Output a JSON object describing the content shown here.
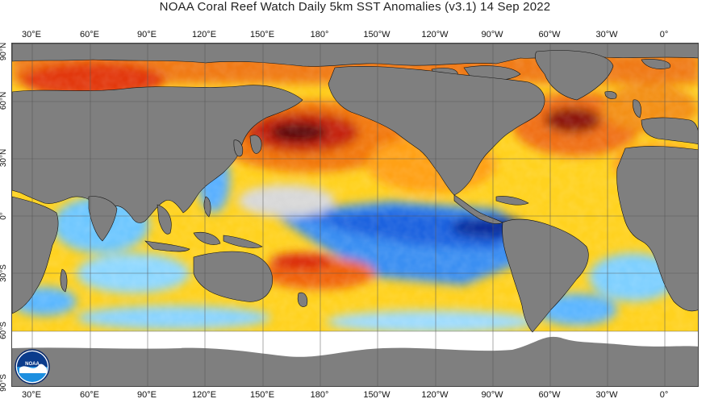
{
  "title": "NOAA Coral Reef Watch Daily 5km SST Anomalies  (v3.1)   14 Sep 2022",
  "longitude_labels": [
    "30°E",
    "60°E",
    "90°E",
    "120°E",
    "150°E",
    "180°",
    "150°W",
    "120°W",
    "90°W",
    "60°W",
    "30°W",
    "0°"
  ],
  "latitude_labels": [
    "90°N",
    "60°N",
    "30°N",
    "0°",
    "30°S",
    "60°S",
    "90°S"
  ],
  "logo": {
    "name": "noaa-logo",
    "text": "NOAA"
  },
  "colors": {
    "land": "#7f7f7f",
    "ice": "#ffffff",
    "anomaly_neutral": "#d6d6d6",
    "anomaly_warm_light": "#ffe033",
    "anomaly_warm": "#ffa500",
    "anomaly_hot": "#e63d0c",
    "anomaly_very_hot": "#5a0a0a",
    "anomaly_cool_light": "#7fd4ff",
    "anomaly_cool": "#2a8cf0",
    "anomaly_very_cool": "#0b2f9e",
    "grid": "#555555"
  }
}
